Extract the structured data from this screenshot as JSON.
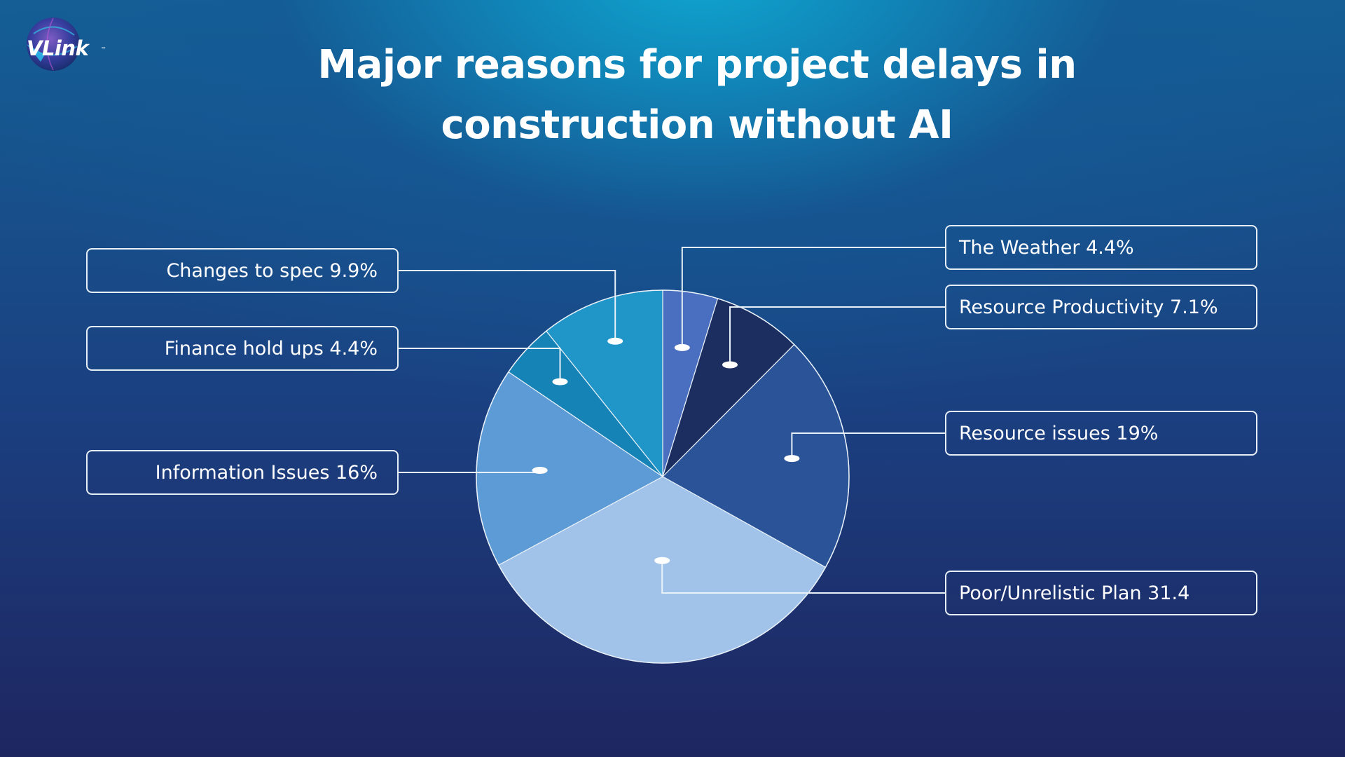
{
  "brand": {
    "name": "VLink",
    "trademark": "™"
  },
  "colors": {
    "weather": "#4a6fc0",
    "productivity": "#1c2d60",
    "resource": "#2a5398",
    "plan": "#a2c3e9",
    "information": "#5d9bd6",
    "finance": "#1583b5",
    "changes": "#1f95c8"
  },
  "chart_data": {
    "type": "pie",
    "title_line1": "Major reasons for project delays in",
    "title_line2": "construction without AI",
    "slices": [
      {
        "key": "weather",
        "label": "The Weather 4.4%",
        "value": 4.4
      },
      {
        "key": "productivity",
        "label": "Resource Productivity 7.1%",
        "value": 7.1
      },
      {
        "key": "resource",
        "label": "Resource issues 19%",
        "value": 19
      },
      {
        "key": "plan",
        "label": "Poor/Unrelistic Plan 31.4",
        "value": 31.4
      },
      {
        "key": "information",
        "label": "Information Issues 16%",
        "value": 16
      },
      {
        "key": "finance",
        "label": "Finance hold ups 4.4%",
        "value": 4.4
      },
      {
        "key": "changes",
        "label": "Changes to spec 9.9%",
        "value": 9.9
      }
    ]
  }
}
